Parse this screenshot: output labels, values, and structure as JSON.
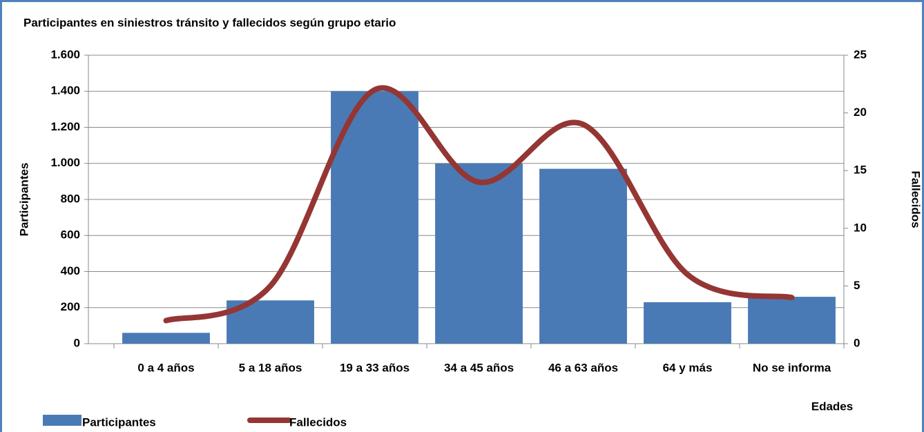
{
  "chart_data": {
    "type": "bar-line",
    "title": "Participantes  en siniestros tránsito y fallecidos  según grupo etario",
    "categories": [
      "0 a 4 años",
      "5 a 18 años",
      "19 a 33 años",
      "34 a 45 años",
      "46 a 63 años",
      "64 y más",
      "No se informa"
    ],
    "series": [
      {
        "name": "Participantes",
        "color": "#4a7ab5",
        "type": "bar",
        "values": [
          60,
          240,
          1400,
          1000,
          970,
          230,
          260
        ]
      },
      {
        "name": "Fallecidos",
        "color": "#943634",
        "type": "line",
        "axis": "y2",
        "smooth": true,
        "values": [
          2,
          5,
          22,
          14,
          19,
          6,
          4
        ]
      }
    ],
    "y_label": "Participantes",
    "y2_label": "Fallecidos",
    "x_label": "Edades",
    "ylim": [
      0,
      1600
    ],
    "yticks": [
      0,
      200,
      400,
      600,
      800,
      {
        "value": 1000,
        "label": "1.000"
      },
      {
        "value": 1200,
        "label": "1.200"
      },
      {
        "value": 1400,
        "label": "1.400"
      },
      {
        "value": 1600,
        "label": "1.600"
      }
    ],
    "y2lim": [
      0,
      25
    ],
    "y2ticks": [
      0,
      5,
      10,
      15,
      20,
      25
    ],
    "grid": true,
    "legend": "bottom-left"
  }
}
